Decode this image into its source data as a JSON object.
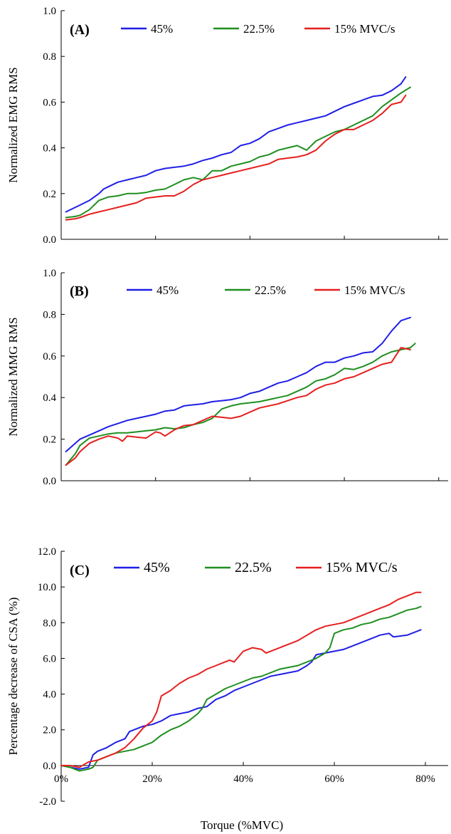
{
  "chart_data": [
    {
      "type": "line",
      "panel_label": "(A)",
      "ylabel": "Normalized EMG RMS",
      "xlabel": "",
      "xlim": [
        0,
        82
      ],
      "ylim": [
        0,
        1.0
      ],
      "yticks": [
        "0.0",
        "0.2",
        "0.4",
        "0.6",
        "0.8",
        "1.0"
      ],
      "xticks": [],
      "legend": "top",
      "series": [
        {
          "name": "45%",
          "color": "#1f1fe6",
          "x": [
            1,
            3,
            5,
            6,
            8,
            9,
            10,
            12,
            14,
            16,
            18,
            20,
            22,
            24,
            26,
            28,
            30,
            32,
            34,
            36,
            38,
            40,
            42,
            44,
            46,
            48,
            50,
            52,
            54,
            56,
            58,
            60,
            62,
            64,
            66,
            68,
            70,
            72,
            73
          ],
          "y": [
            0.12,
            0.14,
            0.16,
            0.17,
            0.2,
            0.22,
            0.23,
            0.25,
            0.26,
            0.27,
            0.28,
            0.3,
            0.31,
            0.315,
            0.32,
            0.33,
            0.345,
            0.355,
            0.37,
            0.38,
            0.41,
            0.42,
            0.44,
            0.47,
            0.485,
            0.5,
            0.51,
            0.52,
            0.53,
            0.54,
            0.56,
            0.58,
            0.595,
            0.61,
            0.625,
            0.63,
            0.65,
            0.68,
            0.71
          ]
        },
        {
          "name": "22.5%",
          "color": "#1f8f1f",
          "x": [
            1,
            3,
            4,
            6,
            8,
            10,
            12,
            14,
            16,
            18,
            20,
            22,
            24,
            26,
            28,
            30,
            32,
            34,
            36,
            38,
            40,
            42,
            44,
            46,
            48,
            50,
            52,
            54,
            56,
            58,
            60,
            62,
            64,
            66,
            68,
            70,
            72,
            74
          ],
          "y": [
            0.095,
            0.1,
            0.105,
            0.13,
            0.17,
            0.185,
            0.19,
            0.2,
            0.2,
            0.205,
            0.215,
            0.22,
            0.24,
            0.26,
            0.27,
            0.26,
            0.3,
            0.3,
            0.32,
            0.33,
            0.34,
            0.36,
            0.37,
            0.39,
            0.4,
            0.41,
            0.39,
            0.43,
            0.45,
            0.47,
            0.48,
            0.5,
            0.52,
            0.54,
            0.58,
            0.61,
            0.64,
            0.665
          ]
        },
        {
          "name": "15% MVC/s",
          "color": "#e61f1f",
          "x": [
            1,
            3,
            4,
            6,
            8,
            10,
            12,
            14,
            16,
            18,
            20,
            22,
            24,
            26,
            28,
            30,
            32,
            34,
            36,
            38,
            40,
            42,
            44,
            46,
            48,
            50,
            52,
            54,
            56,
            58,
            60,
            62,
            64,
            66,
            68,
            70,
            72,
            73
          ],
          "y": [
            0.085,
            0.09,
            0.095,
            0.11,
            0.12,
            0.13,
            0.14,
            0.15,
            0.16,
            0.18,
            0.185,
            0.19,
            0.19,
            0.21,
            0.24,
            0.26,
            0.27,
            0.28,
            0.29,
            0.3,
            0.31,
            0.32,
            0.33,
            0.35,
            0.355,
            0.36,
            0.37,
            0.39,
            0.43,
            0.46,
            0.48,
            0.48,
            0.5,
            0.52,
            0.55,
            0.59,
            0.6,
            0.63
          ]
        }
      ]
    },
    {
      "type": "line",
      "panel_label": "(B)",
      "ylabel": "Normalized MMG RMS",
      "xlabel": "",
      "xlim": [
        0,
        82
      ],
      "ylim": [
        0,
        1.0
      ],
      "yticks": [
        "0.0",
        "0.2",
        "0.4",
        "0.6",
        "0.8",
        "1.0"
      ],
      "xticks": [],
      "legend": "top",
      "series": [
        {
          "name": "45%",
          "color": "#1f1fe6",
          "x": [
            1,
            3,
            4,
            6,
            8,
            10,
            12,
            14,
            16,
            18,
            20,
            22,
            24,
            26,
            28,
            30,
            32,
            34,
            36,
            38,
            40,
            42,
            44,
            46,
            48,
            50,
            52,
            54,
            56,
            58,
            60,
            62,
            64,
            66,
            68,
            70,
            72,
            74
          ],
          "y": [
            0.14,
            0.18,
            0.2,
            0.22,
            0.24,
            0.26,
            0.275,
            0.29,
            0.3,
            0.31,
            0.32,
            0.335,
            0.34,
            0.36,
            0.365,
            0.37,
            0.38,
            0.385,
            0.39,
            0.4,
            0.42,
            0.43,
            0.45,
            0.47,
            0.48,
            0.5,
            0.52,
            0.55,
            0.57,
            0.57,
            0.59,
            0.6,
            0.615,
            0.62,
            0.66,
            0.72,
            0.77,
            0.785
          ]
        },
        {
          "name": "22.5%",
          "color": "#1f8f1f",
          "x": [
            1,
            3,
            4,
            6,
            8,
            10,
            12,
            14,
            16,
            18,
            20,
            22,
            24,
            26,
            28,
            30,
            32,
            34,
            36,
            38,
            40,
            42,
            44,
            46,
            48,
            50,
            52,
            54,
            56,
            58,
            60,
            62,
            64,
            66,
            68,
            70,
            72,
            74,
            75
          ],
          "y": [
            0.075,
            0.13,
            0.17,
            0.205,
            0.215,
            0.225,
            0.23,
            0.23,
            0.235,
            0.24,
            0.245,
            0.255,
            0.25,
            0.255,
            0.27,
            0.28,
            0.3,
            0.345,
            0.36,
            0.37,
            0.375,
            0.38,
            0.39,
            0.4,
            0.41,
            0.43,
            0.45,
            0.48,
            0.49,
            0.51,
            0.54,
            0.535,
            0.55,
            0.57,
            0.6,
            0.62,
            0.63,
            0.64,
            0.66
          ]
        },
        {
          "name": "15% MVC/s",
          "color": "#e61f1f",
          "x": [
            1,
            3,
            4,
            6,
            8,
            10,
            12,
            13,
            14,
            16,
            18,
            20,
            21,
            22,
            23,
            24,
            26,
            28,
            30,
            32,
            34,
            36,
            38,
            40,
            42,
            44,
            46,
            48,
            50,
            52,
            54,
            56,
            58,
            60,
            62,
            64,
            66,
            68,
            70,
            72,
            74
          ],
          "y": [
            0.075,
            0.11,
            0.14,
            0.18,
            0.2,
            0.215,
            0.205,
            0.19,
            0.215,
            0.21,
            0.205,
            0.235,
            0.23,
            0.215,
            0.23,
            0.245,
            0.265,
            0.27,
            0.29,
            0.31,
            0.305,
            0.3,
            0.31,
            0.33,
            0.35,
            0.36,
            0.37,
            0.385,
            0.4,
            0.41,
            0.44,
            0.46,
            0.47,
            0.49,
            0.5,
            0.52,
            0.54,
            0.56,
            0.57,
            0.64,
            0.63
          ]
        }
      ]
    },
    {
      "type": "line",
      "panel_label": "(C)",
      "ylabel": "Percentage decrease of CSA (%)",
      "xlabel": "Torque (%MVC)",
      "xlim": [
        0,
        85
      ],
      "ylim": [
        -2.0,
        12.0
      ],
      "yticks": [
        "-2.0",
        "0.0",
        "2.0",
        "4.0",
        "6.0",
        "8.0",
        "10.0",
        "12.0"
      ],
      "xticks": [
        "0%",
        "20%",
        "40%",
        "60%",
        "80%"
      ],
      "legend": "top",
      "series": [
        {
          "name": "45%",
          "color": "#1f1fe6",
          "x": [
            0,
            2,
            4,
            6,
            7,
            8,
            10,
            12,
            14,
            15,
            16,
            18,
            20,
            22,
            24,
            26,
            28,
            30,
            32,
            34,
            36,
            38,
            40,
            42,
            44,
            46,
            48,
            50,
            52,
            54,
            55,
            56,
            58,
            60,
            62,
            64,
            66,
            68,
            70,
            72,
            73,
            76,
            78,
            79
          ],
          "y": [
            0.0,
            -0.1,
            -0.2,
            -0.1,
            0.6,
            0.8,
            1.0,
            1.3,
            1.5,
            1.9,
            2.0,
            2.2,
            2.3,
            2.5,
            2.8,
            2.9,
            3.0,
            3.2,
            3.3,
            3.7,
            3.9,
            4.2,
            4.4,
            4.6,
            4.8,
            5.0,
            5.1,
            5.2,
            5.3,
            5.6,
            5.8,
            6.2,
            6.3,
            6.4,
            6.5,
            6.7,
            6.9,
            7.1,
            7.3,
            7.4,
            7.2,
            7.3,
            7.5,
            7.6
          ]
        },
        {
          "name": "22.5%",
          "color": "#1f8f1f",
          "x": [
            0,
            2,
            4,
            6,
            7,
            8,
            10,
            12,
            14,
            16,
            18,
            20,
            22,
            24,
            26,
            28,
            30,
            31,
            32,
            34,
            36,
            38,
            40,
            42,
            44,
            46,
            48,
            50,
            52,
            54,
            56,
            58,
            59,
            60,
            62,
            64,
            66,
            68,
            70,
            72,
            74,
            76,
            78,
            79
          ],
          "y": [
            0.0,
            -0.1,
            -0.3,
            -0.2,
            -0.1,
            0.3,
            0.5,
            0.7,
            0.8,
            0.9,
            1.1,
            1.3,
            1.7,
            2.0,
            2.2,
            2.5,
            2.9,
            3.2,
            3.7,
            4.0,
            4.3,
            4.5,
            4.7,
            4.9,
            5.0,
            5.2,
            5.4,
            5.5,
            5.6,
            5.8,
            6.0,
            6.3,
            6.6,
            7.4,
            7.6,
            7.7,
            7.9,
            8.0,
            8.2,
            8.3,
            8.5,
            8.7,
            8.8,
            8.9
          ]
        },
        {
          "name": "15% MVC/s",
          "color": "#e61f1f",
          "x": [
            0,
            2,
            4,
            6,
            8,
            10,
            12,
            14,
            16,
            18,
            20,
            21,
            22,
            24,
            25,
            26,
            28,
            30,
            32,
            34,
            36,
            37,
            38,
            40,
            42,
            44,
            45,
            46,
            48,
            50,
            52,
            54,
            56,
            58,
            60,
            62,
            64,
            66,
            68,
            70,
            72,
            74,
            76,
            78,
            79
          ],
          "y": [
            0.0,
            0.0,
            -0.1,
            0.2,
            0.3,
            0.5,
            0.7,
            1.0,
            1.5,
            2.1,
            2.5,
            3.0,
            3.9,
            4.2,
            4.4,
            4.6,
            4.9,
            5.1,
            5.4,
            5.6,
            5.8,
            5.9,
            5.8,
            6.4,
            6.6,
            6.5,
            6.3,
            6.4,
            6.6,
            6.8,
            7.0,
            7.3,
            7.6,
            7.8,
            7.9,
            8.0,
            8.2,
            8.4,
            8.6,
            8.8,
            9.0,
            9.3,
            9.5,
            9.7,
            9.7
          ]
        }
      ]
    }
  ]
}
